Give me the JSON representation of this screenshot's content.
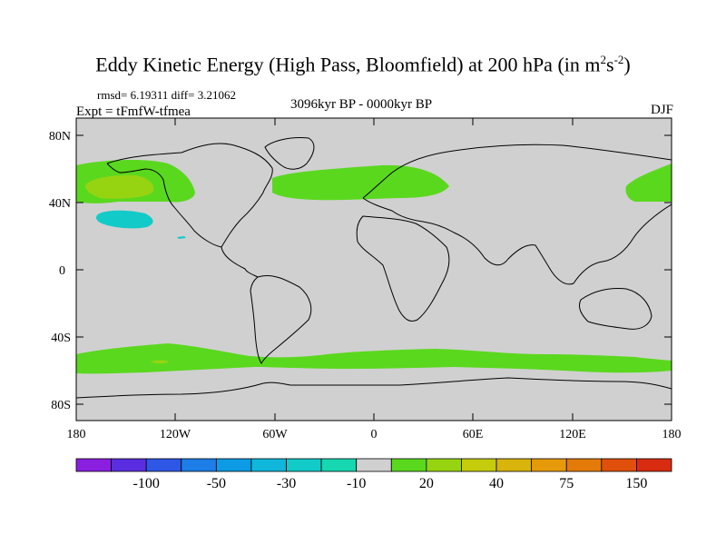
{
  "title": {
    "main": "Eddy Kinetic Energy (High Pass, Bloomfield) at 200 hPa (in m",
    "sup1": "2",
    "mid": "s",
    "sup2": "-2",
    "close": ")"
  },
  "stats": "rmsd= 6.19311 diff= 3.21062",
  "expt": "Expt = tFmfW-tfmea",
  "period": "3096kyr BP - 0000kyr BP",
  "season": "DJF",
  "lat_labels": [
    "80N",
    "40N",
    "0",
    "40S",
    "80S"
  ],
  "lon_labels": [
    "180",
    "120W",
    "60W",
    "0",
    "60E",
    "120E",
    "180"
  ],
  "colorbar": {
    "colors": [
      "#8a1fe0",
      "#5a2ee0",
      "#2f57e6",
      "#1c7ee6",
      "#0c9be4",
      "#10b7da",
      "#12cac8",
      "#16d7b0",
      "#d0d0d0",
      "#5ad81e",
      "#96d412",
      "#c4cc0c",
      "#d8b40c",
      "#e69a0a",
      "#e47a0a",
      "#e0500c",
      "#d82c10"
    ],
    "labels": [
      "-100",
      "-50",
      "-30",
      "-10",
      "20",
      "40",
      "75",
      "150"
    ]
  },
  "map": {
    "background": "#d0d0d0",
    "positive_color": "#5ad81e",
    "strong_positive_color": "#96d412",
    "negative_color": "#12cac8"
  }
}
